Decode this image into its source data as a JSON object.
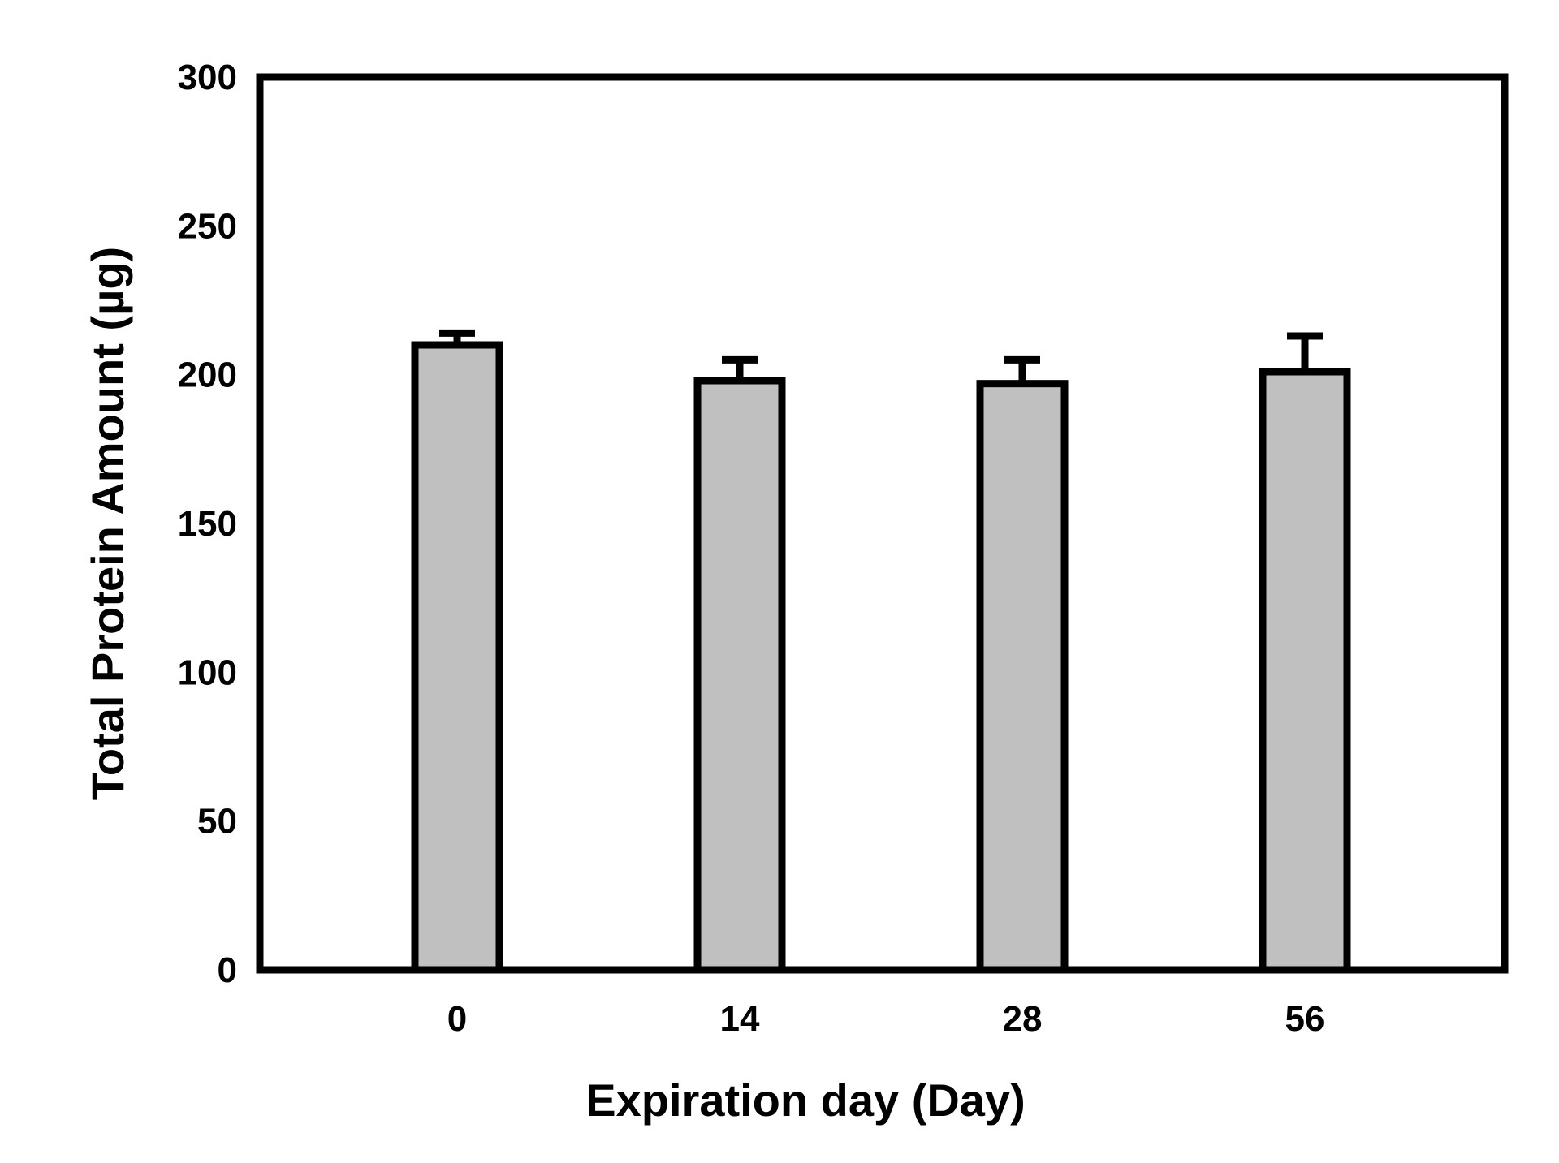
{
  "chart_data": {
    "type": "bar",
    "title": "",
    "xlabel": "Expiration day (Day)",
    "ylabel": "Total Protein Amount (µg)",
    "categories": [
      "0",
      "14",
      "28",
      "56"
    ],
    "values": [
      210,
      198,
      197,
      201
    ],
    "error_upper": [
      4,
      7,
      8,
      12
    ],
    "ylim": [
      0,
      300
    ],
    "yticks": [
      "0",
      "50",
      "100",
      "150",
      "200",
      "250",
      "300"
    ],
    "grid": false,
    "legend": "none",
    "colors": {
      "bar_fill": "#c0c0c0",
      "bar_stroke": "#000000",
      "axis": "#000000",
      "background": "#ffffff"
    }
  }
}
